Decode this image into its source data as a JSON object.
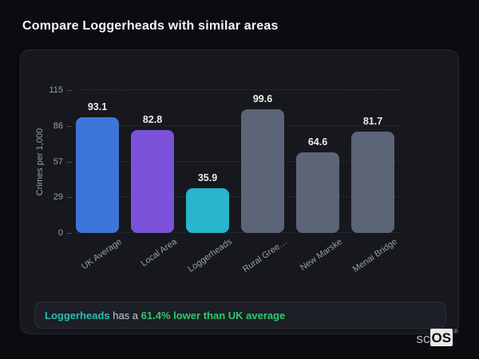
{
  "header": {
    "title": "Compare Loggerheads with similar areas"
  },
  "chart_data": {
    "type": "bar",
    "title": "Compare Loggerheads with similar areas",
    "xlabel": "",
    "ylabel": "Crimes per 1,000",
    "categories": [
      "UK Average",
      "Local Area",
      "Loggerheads",
      "Rural Gree…",
      "New Marske",
      "Menai Bridge"
    ],
    "values": [
      93.1,
      82.8,
      35.9,
      99.6,
      64.6,
      81.7
    ],
    "ylim": [
      0,
      115
    ],
    "yticks": [
      0,
      29,
      57,
      86,
      115
    ],
    "grid": "horizontal-dashed",
    "legend": "none",
    "bar_colors": [
      "#3d76d9",
      "#7b52d9",
      "#27b6ce",
      "#5c6477",
      "#5c6477",
      "#5c6477"
    ],
    "highlight_index": 2
  },
  "note": {
    "subject": "Loggerheads",
    "connector": " has a ",
    "stat": "61.4% lower than UK average"
  },
  "brand": {
    "prefix": "sc",
    "boxed": "OS",
    "registered": "®"
  },
  "colors": {
    "page_bg": "#0b0c10",
    "card_bg": "#16181d",
    "subject_accent": "#2cbcb2",
    "stat_accent": "#2dc96a",
    "bar_blue": "#3d76d9",
    "bar_purple": "#7b52d9",
    "bar_cyan": "#27b6ce",
    "bar_gray": "#5c6477"
  }
}
